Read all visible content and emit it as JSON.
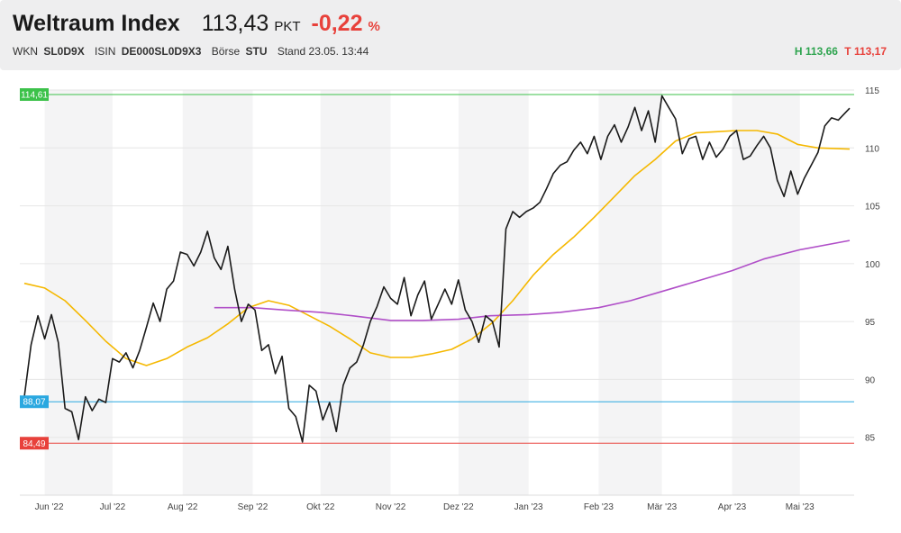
{
  "header": {
    "title": "Weltraum Index",
    "price": "113,43",
    "unit": "PKT",
    "change": "-0,22",
    "change_unit": "%",
    "wkn_label": "WKN",
    "wkn": "SL0D9X",
    "isin_label": "ISIN",
    "isin": "DE000SL0D9X3",
    "exchange_label": "Börse",
    "exchange": "STU",
    "stand": "Stand 23.05. 13:44",
    "high": "H 113,66",
    "low": "T 113,17"
  },
  "colors": {
    "price_line": "#1a1a1a",
    "ma_short": "#f5b800",
    "ma_long": "#b04fc8",
    "high_line": "#3cc24a",
    "last_low_line": "#2aa8e0",
    "low_line": "#e8413b",
    "change_negative": "#e8413b",
    "high_text": "#2ea44f"
  },
  "chart_data": {
    "type": "line",
    "ylim": [
      80,
      115
    ],
    "grid": true,
    "y_ticks": [
      85,
      90,
      95,
      100,
      105,
      110,
      115
    ],
    "y_tick_labels": [
      "85",
      "90",
      "95",
      "100",
      "105",
      "110",
      "115"
    ],
    "x_labels": [
      "Jun '22",
      "Jul '22",
      "Aug '22",
      "Sep '22",
      "Okt '22",
      "Nov '22",
      "Dez '22",
      "Jan '23",
      "Feb '23",
      "Mär '23",
      "Apr '23",
      "Mai '23"
    ],
    "reference_lines": [
      {
        "label": "114,61",
        "value": 114.61,
        "color": "#3cc24a"
      },
      {
        "label": "88,07",
        "value": 88.07,
        "color": "#2aa8e0"
      },
      {
        "label": "84,49",
        "value": 84.49,
        "color": "#e8413b"
      }
    ],
    "series": [
      {
        "color": "#1a1a1a",
        "x": [
          "2022-05-23",
          "2022-05-26",
          "2022-05-29",
          "2022-06-01",
          "2022-06-04",
          "2022-06-07",
          "2022-06-10",
          "2022-06-13",
          "2022-06-16",
          "2022-06-19",
          "2022-06-22",
          "2022-06-25",
          "2022-06-28",
          "2022-07-01",
          "2022-07-04",
          "2022-07-07",
          "2022-07-10",
          "2022-07-13",
          "2022-07-16",
          "2022-07-19",
          "2022-07-22",
          "2022-07-25",
          "2022-07-28",
          "2022-07-31",
          "2022-08-03",
          "2022-08-06",
          "2022-08-09",
          "2022-08-12",
          "2022-08-15",
          "2022-08-18",
          "2022-08-21",
          "2022-08-24",
          "2022-08-27",
          "2022-08-30",
          "2022-09-02",
          "2022-09-05",
          "2022-09-08",
          "2022-09-11",
          "2022-09-14",
          "2022-09-17",
          "2022-09-20",
          "2022-09-23",
          "2022-09-26",
          "2022-09-29",
          "2022-10-02",
          "2022-10-05",
          "2022-10-08",
          "2022-10-11",
          "2022-10-14",
          "2022-10-17",
          "2022-10-20",
          "2022-10-23",
          "2022-10-26",
          "2022-10-29",
          "2022-11-01",
          "2022-11-04",
          "2022-11-07",
          "2022-11-10",
          "2022-11-13",
          "2022-11-16",
          "2022-11-19",
          "2022-11-22",
          "2022-11-25",
          "2022-11-28",
          "2022-12-01",
          "2022-12-04",
          "2022-12-07",
          "2022-12-10",
          "2022-12-13",
          "2022-12-16",
          "2022-12-19",
          "2022-12-22",
          "2022-12-25",
          "2022-12-28",
          "2022-12-31",
          "2023-01-03",
          "2023-01-06",
          "2023-01-09",
          "2023-01-12",
          "2023-01-15",
          "2023-01-18",
          "2023-01-21",
          "2023-01-24",
          "2023-01-27",
          "2023-01-30",
          "2023-02-02",
          "2023-02-05",
          "2023-02-08",
          "2023-02-11",
          "2023-02-14",
          "2023-02-17",
          "2023-02-20",
          "2023-02-23",
          "2023-02-26",
          "2023-03-01",
          "2023-03-04",
          "2023-03-07",
          "2023-03-10",
          "2023-03-13",
          "2023-03-16",
          "2023-03-19",
          "2023-03-22",
          "2023-03-25",
          "2023-03-28",
          "2023-03-31",
          "2023-04-03",
          "2023-04-06",
          "2023-04-09",
          "2023-04-12",
          "2023-04-15",
          "2023-04-18",
          "2023-04-21",
          "2023-04-24",
          "2023-04-27",
          "2023-04-30",
          "2023-05-03",
          "2023-05-06",
          "2023-05-09",
          "2023-05-12",
          "2023-05-15",
          "2023-05-18",
          "2023-05-23"
        ],
        "values": [
          88.5,
          93.0,
          95.5,
          93.5,
          95.6,
          93.2,
          87.5,
          87.2,
          84.8,
          88.5,
          87.3,
          88.3,
          88.0,
          91.8,
          91.5,
          92.3,
          91.0,
          92.5,
          94.5,
          96.6,
          95.0,
          97.8,
          98.5,
          101.0,
          100.8,
          99.8,
          101.0,
          102.8,
          100.5,
          99.5,
          101.5,
          97.8,
          95.0,
          96.5,
          96.0,
          92.5,
          93.0,
          90.5,
          92.0,
          87.5,
          86.8,
          84.6,
          89.5,
          89.0,
          86.5,
          88.0,
          85.5,
          89.5,
          91.0,
          91.5,
          93.0,
          95.0,
          96.3,
          98.0,
          97.0,
          96.5,
          98.8,
          95.5,
          97.3,
          98.5,
          95.2,
          96.5,
          97.8,
          96.5,
          98.6,
          96.0,
          95.0,
          93.2,
          95.5,
          95.0,
          92.8,
          103.0,
          104.5,
          104.0,
          104.5,
          104.8,
          105.3,
          106.5,
          107.8,
          108.5,
          108.8,
          109.8,
          110.5,
          109.5,
          111.0,
          109.0,
          111.0,
          112.0,
          110.5,
          111.8,
          113.5,
          111.5,
          113.2,
          110.5,
          114.5,
          113.5,
          112.5,
          109.5,
          110.8,
          111.0,
          109.0,
          110.5,
          109.2,
          109.9,
          111.0,
          111.5,
          109.0,
          109.3,
          110.2,
          111.0,
          110.0,
          107.2,
          105.8,
          108.0,
          106.0,
          107.4,
          108.5,
          109.6,
          111.9,
          112.6,
          112.4,
          113.43
        ]
      },
      {
        "color": "#f5b800",
        "x": [
          "2022-05-23",
          "2022-06-01",
          "2022-06-10",
          "2022-06-19",
          "2022-06-28",
          "2022-07-07",
          "2022-07-16",
          "2022-07-25",
          "2022-08-03",
          "2022-08-12",
          "2022-08-21",
          "2022-08-30",
          "2022-09-08",
          "2022-09-17",
          "2022-09-26",
          "2022-10-05",
          "2022-10-14",
          "2022-10-23",
          "2022-11-01",
          "2022-11-10",
          "2022-11-19",
          "2022-11-28",
          "2022-12-07",
          "2022-12-16",
          "2022-12-25",
          "2023-01-03",
          "2023-01-12",
          "2023-01-21",
          "2023-01-30",
          "2023-02-08",
          "2023-02-17",
          "2023-02-26",
          "2023-03-07",
          "2023-03-16",
          "2023-03-25",
          "2023-04-03",
          "2023-04-12",
          "2023-04-21",
          "2023-04-30",
          "2023-05-09",
          "2023-05-23"
        ],
        "values": [
          98.3,
          97.9,
          96.8,
          95.1,
          93.3,
          91.8,
          91.2,
          91.8,
          92.8,
          93.6,
          94.8,
          96.2,
          96.8,
          96.4,
          95.5,
          94.6,
          93.5,
          92.3,
          91.9,
          91.9,
          92.2,
          92.6,
          93.5,
          94.9,
          96.8,
          99.0,
          100.8,
          102.3,
          104.0,
          105.8,
          107.6,
          109.0,
          110.6,
          111.3,
          111.4,
          111.5,
          111.5,
          111.2,
          110.3,
          110.0,
          109.9
        ]
      },
      {
        "color": "#b04fc8",
        "x": [
          "2022-08-15",
          "2022-09-01",
          "2022-09-15",
          "2022-10-01",
          "2022-10-15",
          "2022-11-01",
          "2022-11-15",
          "2022-12-01",
          "2022-12-15",
          "2023-01-01",
          "2023-01-15",
          "2023-02-01",
          "2023-02-15",
          "2023-03-01",
          "2023-03-15",
          "2023-04-01",
          "2023-04-15",
          "2023-05-01",
          "2023-05-23"
        ],
        "values": [
          96.2,
          96.2,
          96.0,
          95.8,
          95.5,
          95.1,
          95.1,
          95.2,
          95.5,
          95.6,
          95.8,
          96.2,
          96.8,
          97.6,
          98.4,
          99.4,
          100.4,
          101.2,
          102.0
        ]
      }
    ]
  }
}
